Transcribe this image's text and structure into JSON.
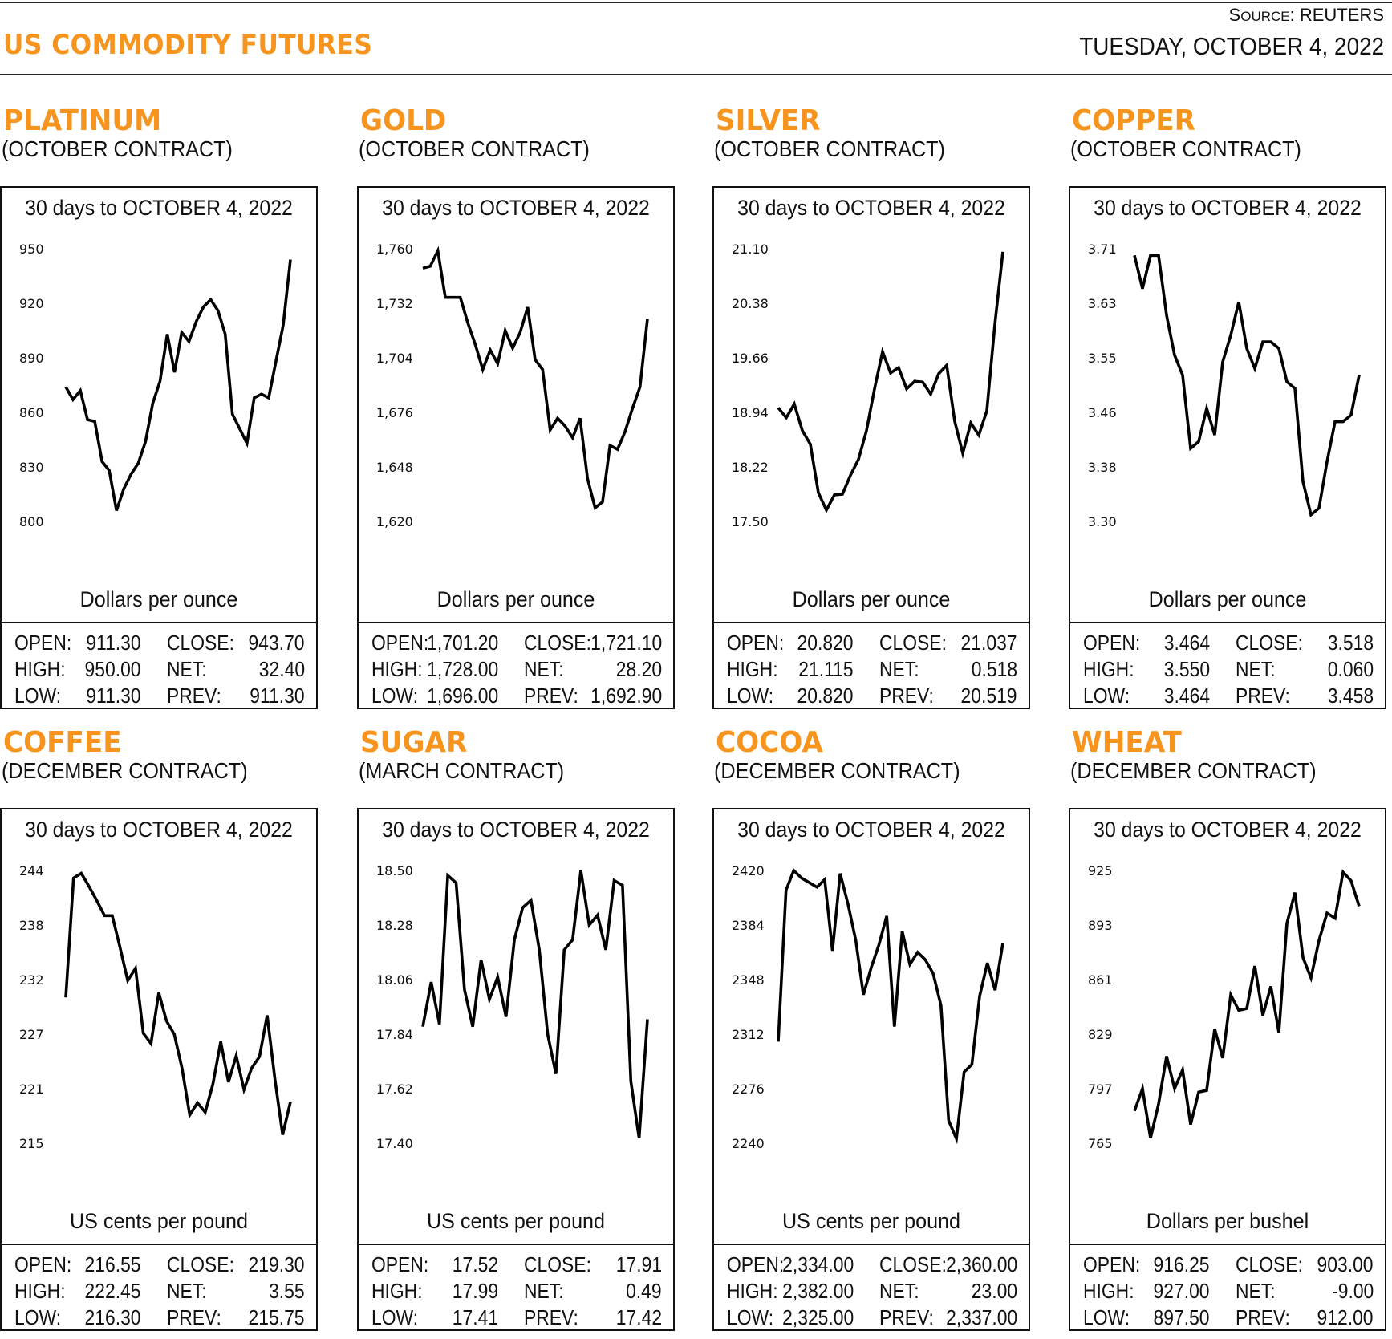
{
  "header": {
    "title": "US COMMODITY FUTURES",
    "source_prefix": "S",
    "source_rest": "OURCE",
    "source_name": ": REUTERS",
    "date": "TUESDAY, OCTOBER 4, 2022"
  },
  "labels": {
    "open": "OPEN:",
    "high": "HIGH:",
    "low": "LOW:",
    "close": "CLOSE:",
    "net": "NET:",
    "prev": "PREV:"
  },
  "panels": [
    {
      "name": "PLATINUM",
      "contract": "(OCTOBER CONTRACT)",
      "period": "30 days to OCTOBER 4, 2022",
      "unit": "Dollars per ounce",
      "stats": {
        "open": "911.30",
        "high": "950.00",
        "low": "911.30",
        "close": "943.70",
        "net": "32.40",
        "prev": "911.30"
      }
    },
    {
      "name": "GOLD",
      "contract": "(OCTOBER CONTRACT)",
      "period": "30 days to OCTOBER 4, 2022",
      "unit": "Dollars per ounce",
      "stats": {
        "open": "1,701.20",
        "high": "1,728.00",
        "low": "1,696.00",
        "close": "1,721.10",
        "net": "28.20",
        "prev": "1,692.90"
      }
    },
    {
      "name": "SILVER",
      "contract": "(OCTOBER CONTRACT)",
      "period": "30 days to OCTOBER 4, 2022",
      "unit": "Dollars per ounce",
      "stats": {
        "open": "20.820",
        "high": "21.115",
        "low": "20.820",
        "close": "21.037",
        "net": "0.518",
        "prev": "20.519"
      }
    },
    {
      "name": "COPPER",
      "contract": "(OCTOBER CONTRACT)",
      "period": "30 days to OCTOBER 4, 2022",
      "unit": "Dollars per ounce",
      "stats": {
        "open": "3.464",
        "high": "3.550",
        "low": "3.464",
        "close": "3.518",
        "net": "0.060",
        "prev": "3.458"
      }
    },
    {
      "name": "COFFEE",
      "contract": "(DECEMBER CONTRACT)",
      "period": "30 days to OCTOBER 4, 2022",
      "unit": "US cents per pound",
      "stats": {
        "open": "216.55",
        "high": "222.45",
        "low": "216.30",
        "close": "219.30",
        "net": "3.55",
        "prev": "215.75"
      }
    },
    {
      "name": "SUGAR",
      "contract": "(MARCH CONTRACT)",
      "period": "30 days to OCTOBER 4, 2022",
      "unit": "US cents per pound",
      "stats": {
        "open": "17.52",
        "high": "17.99",
        "low": "17.41",
        "close": "17.91",
        "net": "0.49",
        "prev": "17.42"
      }
    },
    {
      "name": "COCOA",
      "contract": "(DECEMBER CONTRACT)",
      "period": "30 days to OCTOBER 4, 2022",
      "unit": "US cents per pound",
      "stats": {
        "open": "2,334.00",
        "high": "2,382.00",
        "low": "2,325.00",
        "close": "2,360.00",
        "net": "23.00",
        "prev": "2,337.00"
      }
    },
    {
      "name": "WHEAT",
      "contract": "(DECEMBER CONTRACT)",
      "period": "30 days to OCTOBER 4, 2022",
      "unit": "Dollars per bushel",
      "stats": {
        "open": "916.25",
        "high": "927.00",
        "low": "897.50",
        "close": "903.00",
        "net": "-9.00",
        "prev": "912.00"
      }
    }
  ],
  "chart_data": [
    {
      "type": "line",
      "title": "PLATINUM (OCTOBER CONTRACT) — 30 days to OCTOBER 4, 2022",
      "xlabel": "",
      "ylabel": "Dollars per ounce",
      "yticks": [
        "950",
        "920",
        "890",
        "860",
        "830",
        "800"
      ],
      "ylim": [
        800,
        950
      ],
      "series": [
        {
          "name": "Platinum",
          "values": [
            874,
            867,
            872,
            856,
            855,
            833,
            828,
            806,
            818,
            826,
            832,
            844,
            865,
            877,
            903,
            882,
            904,
            899,
            910,
            918,
            922,
            916,
            903,
            859,
            851,
            843,
            868,
            870,
            868,
            888,
            908,
            944
          ]
        }
      ]
    },
    {
      "type": "line",
      "title": "GOLD (OCTOBER CONTRACT) — 30 days to OCTOBER 4, 2022",
      "xlabel": "",
      "ylabel": "Dollars per ounce",
      "yticks": [
        "1,760",
        "1,732",
        "1,704",
        "1,676",
        "1,648",
        "1,620"
      ],
      "ylim": [
        1620,
        1760
      ],
      "series": [
        {
          "name": "Gold",
          "values": [
            1750,
            1751,
            1759,
            1735,
            1735,
            1735,
            1722,
            1711,
            1698,
            1708,
            1701,
            1718,
            1709,
            1717,
            1730,
            1703,
            1698,
            1667,
            1673,
            1669,
            1663,
            1673,
            1642,
            1627,
            1630,
            1659,
            1657,
            1666,
            1678,
            1689,
            1724
          ]
        }
      ]
    },
    {
      "type": "line",
      "title": "SILVER (OCTOBER CONTRACT) — 30 days to OCTOBER 4, 2022",
      "xlabel": "",
      "ylabel": "Dollars per ounce",
      "yticks": [
        "21.10",
        "20.38",
        "19.66",
        "18.94",
        "18.22",
        "17.50"
      ],
      "ylim": [
        17.5,
        21.1
      ],
      "series": [
        {
          "name": "Silver",
          "values": [
            19.0,
            18.87,
            19.05,
            18.7,
            18.52,
            17.88,
            17.65,
            17.85,
            17.86,
            18.11,
            18.32,
            18.7,
            19.25,
            19.74,
            19.46,
            19.53,
            19.25,
            19.35,
            19.34,
            19.18,
            19.45,
            19.56,
            18.82,
            18.4,
            18.8,
            18.64,
            18.96,
            20.1,
            21.06
          ]
        }
      ]
    },
    {
      "type": "line",
      "title": "COPPER (OCTOBER CONTRACT) — 30 days to OCTOBER 4, 2022",
      "xlabel": "",
      "ylabel": "Dollars per ounce",
      "yticks": [
        "3.71",
        "3.63",
        "3.55",
        "3.46",
        "3.38",
        "3.30"
      ],
      "ylim": [
        3.3,
        3.71
      ],
      "series": [
        {
          "name": "Copper",
          "values": [
            3.7,
            3.65,
            3.7,
            3.7,
            3.61,
            3.55,
            3.52,
            3.41,
            3.42,
            3.47,
            3.43,
            3.54,
            3.58,
            3.63,
            3.56,
            3.53,
            3.57,
            3.57,
            3.56,
            3.51,
            3.5,
            3.36,
            3.31,
            3.32,
            3.39,
            3.45,
            3.45,
            3.46,
            3.52
          ]
        }
      ]
    },
    {
      "type": "line",
      "title": "COFFEE (DECEMBER CONTRACT) — 30 days to OCTOBER 4, 2022",
      "xlabel": "",
      "ylabel": "US cents per pound",
      "yticks": [
        "244",
        "238",
        "232",
        "227",
        "221",
        "215"
      ],
      "ylim": [
        215,
        244
      ],
      "series": [
        {
          "name": "Coffee",
          "values": [
            230.5,
            243.2,
            243.7,
            242.3,
            240.8,
            239.2,
            239.2,
            235.8,
            232.3,
            233.6,
            226.7,
            225.6,
            231.0,
            228.0,
            226.6,
            223.0,
            218.0,
            219.3,
            218.3,
            221.3,
            225.8,
            221.5,
            224.3,
            220.7,
            223.0,
            224.2,
            228.6,
            221.8,
            215.9,
            219.4
          ]
        }
      ]
    },
    {
      "type": "line",
      "title": "SUGAR (MARCH CONTRACT) — 30 days to OCTOBER 4, 2022",
      "xlabel": "",
      "ylabel": "US cents per pound",
      "yticks": [
        "18.50",
        "18.28",
        "18.06",
        "17.84",
        "17.62",
        "17.40"
      ],
      "ylim": [
        17.4,
        18.5
      ],
      "series": [
        {
          "name": "Sugar",
          "values": [
            17.87,
            18.05,
            17.88,
            18.48,
            18.45,
            18.02,
            17.87,
            18.14,
            17.98,
            18.07,
            17.91,
            18.22,
            18.35,
            18.38,
            18.18,
            17.84,
            17.68,
            18.18,
            18.22,
            18.5,
            18.28,
            18.32,
            18.18,
            18.46,
            18.44,
            17.65,
            17.42,
            17.9
          ]
        }
      ]
    },
    {
      "type": "line",
      "title": "COCOA (DECEMBER CONTRACT) — 30 days to OCTOBER 4, 2022",
      "xlabel": "",
      "ylabel": "US cents per pound",
      "yticks": [
        "2420",
        "2384",
        "2348",
        "2312",
        "2276",
        "2240"
      ],
      "ylim": [
        2240,
        2420
      ],
      "series": [
        {
          "name": "Cocoa",
          "values": [
            2307,
            2407,
            2420,
            2415,
            2412,
            2409,
            2414,
            2367,
            2418,
            2398,
            2374,
            2338,
            2356,
            2371,
            2390,
            2317,
            2380,
            2358,
            2366,
            2361,
            2352,
            2331,
            2255,
            2243,
            2287,
            2292,
            2337,
            2359,
            2341,
            2372
          ]
        }
      ]
    },
    {
      "type": "line",
      "title": "WHEAT (DECEMBER CONTRACT) — 30 days to OCTOBER 4, 2022",
      "xlabel": "",
      "ylabel": "Dollars per bushel",
      "yticks": [
        "925",
        "893",
        "861",
        "829",
        "797",
        "765"
      ],
      "ylim": [
        765,
        925
      ],
      "series": [
        {
          "name": "Wheat",
          "values": [
            784,
            797,
            768,
            788,
            816,
            797,
            808,
            776,
            795,
            796,
            832,
            815,
            852,
            843,
            844,
            869,
            840,
            857,
            830,
            894,
            912,
            874,
            862,
            884,
            900,
            897,
            924,
            919,
            904
          ]
        }
      ]
    }
  ]
}
